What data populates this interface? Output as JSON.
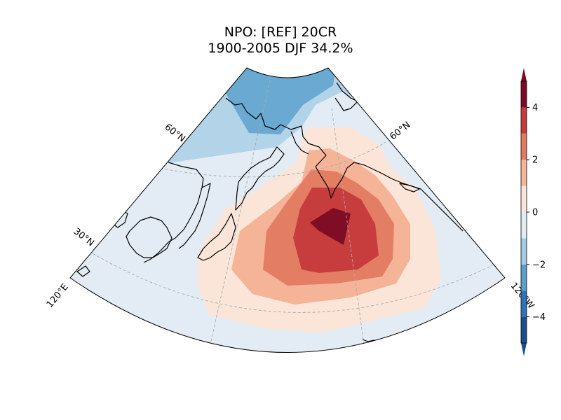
{
  "title_line1": "NPO: [REF] 20CR",
  "title_line2": "1900-2005 DJF 34.2%",
  "map": {
    "projection": "conic sector over the North Pacific",
    "lat_labels": [
      "60°N",
      "60°N",
      "30°N"
    ],
    "lon_labels": [
      "120°E",
      "120°W"
    ],
    "gridlines": "dashed gray",
    "coastlines": "black"
  },
  "colorbar": {
    "ticks": [
      "4",
      "2",
      "0",
      "−2",
      "−4"
    ],
    "levels": [
      -5,
      -4,
      -3,
      -2,
      -1,
      0,
      1,
      2,
      3,
      4,
      5
    ],
    "colors": [
      "#1a4f8a",
      "#2f73b2",
      "#5d9fcc",
      "#a3cce3",
      "#e0ebf3",
      "#fbe5da",
      "#f6b596",
      "#e07a60",
      "#c33b3b",
      "#7d0a25"
    ],
    "extend": "both"
  }
}
